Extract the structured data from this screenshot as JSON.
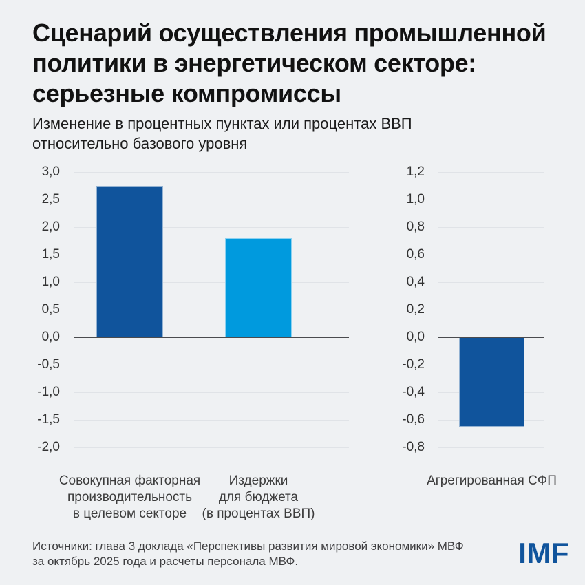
{
  "header": {
    "title_lines": [
      "Сценарий осуществления промышленной",
      "политики в энергетическом секторе:",
      "серьезные компромиссы"
    ],
    "subtitle_lines": [
      "Изменение в процентных пунктах или процентах ВВП",
      "относительно базового уровня"
    ]
  },
  "footer": {
    "source_lines": [
      "Источники: глава 3 доклада «Перспективы развития мировой экономики» МВФ",
      "за октябрь 2025 года и расчеты персонала МВФ."
    ],
    "logo_text": "IMF"
  },
  "colors": {
    "dark_blue": "#10549C",
    "light_blue": "#009ADE",
    "background": "#EFF1F3",
    "gridline": "#E0E3E7",
    "zero_line": "#4A4B4E",
    "logo_blue": "#10549C"
  },
  "chart_data": [
    {
      "type": "bar",
      "title": "",
      "xlabel": "",
      "ylabel": "",
      "categories": [
        "Совокупная факторная производительность в целевом секторе",
        "Издержки для бюджета (в процентах ВВП)"
      ],
      "category_lines": [
        [
          "Совокупная факторная",
          "производительность",
          "в целевом секторе"
        ],
        [
          "Издержки",
          "для бюджета",
          "(в процентах ВВП)"
        ]
      ],
      "values": [
        2.75,
        1.8
      ],
      "bar_colors": [
        "#10549C",
        "#009ADE"
      ],
      "ylim": [
        -2.0,
        3.0
      ],
      "ytick_step": 0.5,
      "ytick_labels": [
        "3,0",
        "2,5",
        "2,0",
        "1,5",
        "1,0",
        "0,5",
        "0,0",
        "-0,5",
        "-1,0",
        "-1,5",
        "-2,0"
      ],
      "grid": true,
      "legend": "none"
    },
    {
      "type": "bar",
      "title": "",
      "xlabel": "",
      "ylabel": "",
      "categories": [
        "Агрегированная СФП"
      ],
      "category_lines": [
        [
          "Агрегированная СФП"
        ]
      ],
      "values": [
        -0.65
      ],
      "bar_colors": [
        "#10549C"
      ],
      "ylim": [
        -0.8,
        1.2
      ],
      "ytick_step": 0.2,
      "ytick_labels": [
        "1,2",
        "1,0",
        "0,8",
        "0,6",
        "0,4",
        "0,2",
        "0,0",
        "-0,2",
        "-0,4",
        "-0,6",
        "-0,8"
      ],
      "grid": true,
      "legend": "none"
    }
  ]
}
